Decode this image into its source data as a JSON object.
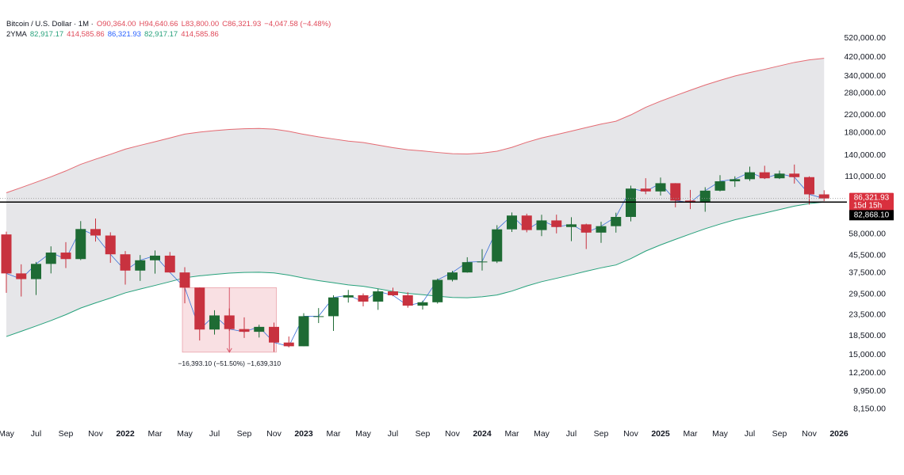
{
  "chart_data": {
    "type": "candlestick",
    "title": "Bitcoin / U.S. Dollar · 1M ·",
    "ohlc_legend": [
      "O90,364.00",
      "H94,640.66",
      "L83,800.00",
      "C86,321.93",
      "−4,047.58 (−4.48%)"
    ],
    "indicator_legend": {
      "name": "2YMA",
      "values": [
        "82,917.17",
        "414,585.86",
        "86,321.93",
        "82,917.17",
        "414,585.86"
      ]
    },
    "categories": [
      "May",
      null,
      "Jul",
      null,
      "Sep",
      null,
      "Nov",
      null,
      "2022",
      null,
      "Mar",
      null,
      "May",
      null,
      "Jul",
      null,
      "Sep",
      null,
      "Nov",
      null,
      "2023",
      null,
      "Mar",
      null,
      "May",
      null,
      "Jul",
      null,
      "Sep",
      null,
      "Nov",
      null,
      "2024",
      null,
      "Mar",
      null,
      "May",
      null,
      "Jul",
      null,
      "Sep",
      null,
      "Nov",
      null,
      "2025",
      null,
      "Mar",
      null,
      "May",
      null,
      "Jul",
      null,
      "Sep",
      null,
      "Nov",
      null,
      "2026"
    ],
    "open": [
      57700,
      37300,
      35000,
      41500,
      47100,
      43800,
      61300,
      57000,
      46200,
      38500,
      43200,
      45500,
      37700,
      31800,
      19900,
      23300,
      20000,
      19400,
      20500,
      17200,
      16500,
      23100,
      23100,
      28500,
      29200,
      27200,
      30500,
      29200,
      26000,
      27000,
      34700,
      37700,
      42300,
      42600,
      61100,
      71300,
      60600,
      67500,
      62700,
      64600,
      58900,
      63300,
      70200,
      96400,
      93400,
      102400,
      84300,
      82500,
      94200,
      104600,
      107100,
      115700,
      108200,
      114000,
      109600,
      90364,
      null
    ],
    "high": [
      59500,
      41300,
      42400,
      50500,
      52900,
      67000,
      69000,
      59100,
      47900,
      45800,
      48200,
      47400,
      40000,
      31900,
      24700,
      25200,
      22800,
      21000,
      21500,
      18400,
      23900,
      25300,
      29200,
      31000,
      29800,
      31400,
      31800,
      30200,
      27500,
      35200,
      38400,
      44700,
      48900,
      64000,
      73800,
      72800,
      71900,
      72000,
      70000,
      65100,
      66500,
      73600,
      99600,
      108300,
      109100,
      102500,
      95000,
      97900,
      112000,
      110600,
      123200,
      124500,
      117900,
      126200,
      110600,
      94640.66,
      null
    ],
    "low": [
      30000,
      28800,
      29300,
      37300,
      39600,
      43300,
      53300,
      42000,
      32900,
      34300,
      37200,
      37600,
      26700,
      17600,
      18800,
      19600,
      18100,
      18200,
      15500,
      16300,
      16500,
      21400,
      19600,
      26900,
      25800,
      24800,
      28900,
      25400,
      24900,
      26600,
      34100,
      37600,
      38500,
      41900,
      59300,
      59100,
      56600,
      58400,
      53500,
      49000,
      52500,
      58900,
      66800,
      90500,
      89200,
      78200,
      76600,
      74400,
      93400,
      98200,
      105100,
      107300,
      107300,
      102000,
      80600,
      83800,
      null
    ],
    "close": [
      37300,
      35000,
      41500,
      47100,
      43800,
      61300,
      57000,
      46200,
      38500,
      43200,
      45500,
      37700,
      31800,
      19900,
      23300,
      20000,
      19400,
      20500,
      17200,
      16500,
      23100,
      23100,
      28500,
      29200,
      27200,
      30500,
      29200,
      26000,
      27000,
      34700,
      37700,
      42300,
      42600,
      61100,
      71300,
      60600,
      67500,
      62700,
      64600,
      58900,
      63300,
      70200,
      96400,
      93400,
      102400,
      84300,
      82500,
      94200,
      104600,
      107100,
      115700,
      108200,
      114000,
      109600,
      90400,
      86321.93,
      null
    ],
    "up_color": "#1e6b34",
    "down_color": "#c8323f",
    "close_line_color": "#3a6fd8",
    "bands": {
      "fill": "#e6e6e9",
      "lower": {
        "color": "#26a17b",
        "values": [
          18400,
          19500,
          20700,
          22000,
          23500,
          25300,
          26800,
          28300,
          30000,
          31300,
          32600,
          34000,
          35500,
          36300,
          36900,
          37400,
          37700,
          37800,
          37500,
          36600,
          35400,
          34400,
          33600,
          32800,
          32300,
          31400,
          30500,
          29800,
          29400,
          28900,
          28500,
          28400,
          28700,
          29300,
          30600,
          32400,
          34000,
          35300,
          36700,
          38200,
          39700,
          41000,
          44000,
          47900,
          51300,
          54600,
          58000,
          61500,
          64800,
          68000,
          70700,
          73300,
          76200,
          79200,
          81500,
          82917.17,
          null
        ]
      },
      "upper": {
        "color": "#e46a72",
        "values": [
          92000,
          97500,
          103500,
          110000,
          117500,
          126500,
          134000,
          141500,
          150000,
          156500,
          163000,
          170000,
          177500,
          181500,
          184500,
          187000,
          188500,
          189000,
          187500,
          183000,
          177000,
          172000,
          168000,
          164000,
          161500,
          157000,
          152500,
          149000,
          147000,
          144500,
          142500,
          142000,
          143500,
          146500,
          153000,
          162000,
          170000,
          176500,
          183500,
          191000,
          198500,
          205000,
          220000,
          239500,
          256500,
          273000,
          290000,
          307500,
          324000,
          340000,
          353500,
          366500,
          381000,
          396000,
          407500,
          414585.86,
          null
        ]
      }
    },
    "price_line": {
      "value": 86321.93,
      "label": "86,321.93",
      "countdown": "15d 15h",
      "color": "#d9303e"
    },
    "hline": {
      "value": 82868.1,
      "label": "82,868.10",
      "color": "#000000"
    },
    "measure": {
      "from": 31830,
      "to": 15437,
      "label": "−16,393.10 (−51.50%) −1,639,310",
      "color": "#f4c6cc"
    },
    "log_scale": true,
    "ylim": [
      7260,
      667000
    ],
    "yticks": [
      {
        "value": 520000,
        "label": "520,000.00"
      },
      {
        "value": 420000,
        "label": "420,000.00"
      },
      {
        "value": 340000,
        "label": "340,000.00"
      },
      {
        "value": 280000,
        "label": "280,000.00"
      },
      {
        "value": 220000,
        "label": "220,000.00"
      },
      {
        "value": 180000,
        "label": "180,000.00"
      },
      {
        "value": 140000,
        "label": "140,000.00"
      },
      {
        "value": 110000,
        "label": "110,000.00"
      },
      {
        "value": 58000,
        "label": "58,000.00"
      },
      {
        "value": 45500,
        "label": "45,500.00"
      },
      {
        "value": 37500,
        "label": "37,500.00"
      },
      {
        "value": 29500,
        "label": "29,500.00"
      },
      {
        "value": 23500,
        "label": "23,500.00"
      },
      {
        "value": 18500,
        "label": "18,500.00"
      },
      {
        "value": 15000,
        "label": "15,000.00"
      },
      {
        "value": 12200,
        "label": "12,200.00"
      },
      {
        "value": 9950,
        "label": "9,950.00"
      },
      {
        "value": 8150,
        "label": "8,150.00"
      }
    ],
    "grid": false
  }
}
